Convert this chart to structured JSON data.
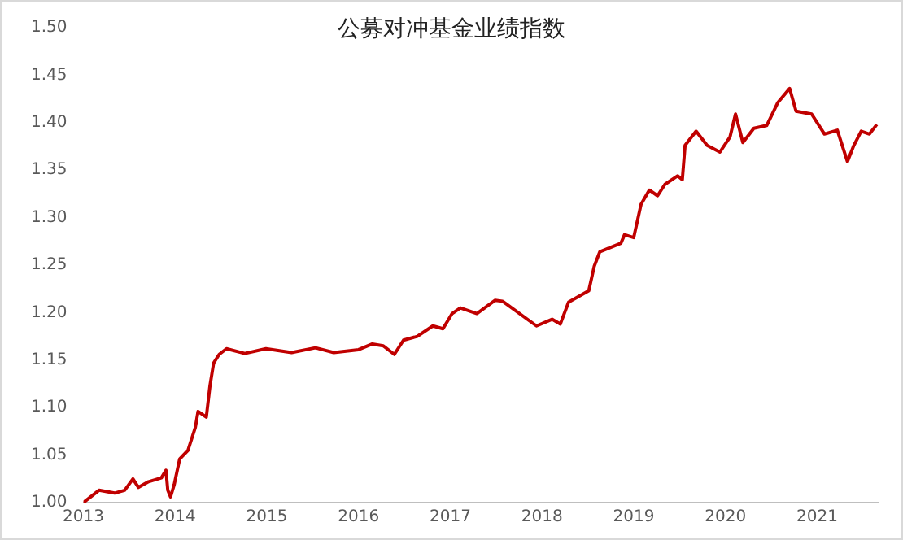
{
  "chart_data": {
    "type": "line",
    "title": "公募对冲基金业绩指数",
    "x": [
      2013.0,
      2013.17,
      2013.34,
      2013.45,
      2013.54,
      2013.6,
      2013.71,
      2013.85,
      2013.9,
      2013.92,
      2013.95,
      2013.99,
      2014.05,
      2014.14,
      2014.22,
      2014.25,
      2014.34,
      2014.38,
      2014.42,
      2014.48,
      2014.56,
      2014.76,
      2014.99,
      2015.27,
      2015.53,
      2015.73,
      2016.0,
      2016.15,
      2016.27,
      2016.39,
      2016.49,
      2016.64,
      2016.81,
      2016.92,
      2017.02,
      2017.11,
      2017.29,
      2017.49,
      2017.57,
      2017.94,
      2018.11,
      2018.2,
      2018.29,
      2018.51,
      2018.57,
      2018.63,
      2018.86,
      2018.9,
      2019.0,
      2019.08,
      2019.17,
      2019.26,
      2019.34,
      2019.48,
      2019.53,
      2019.56,
      2019.68,
      2019.8,
      2019.94,
      2020.05,
      2020.11,
      2020.19,
      2020.31,
      2020.45,
      2020.57,
      2020.7,
      2020.77,
      2020.94,
      2021.08,
      2021.22,
      2021.33,
      2021.4,
      2021.48,
      2021.57,
      2021.65
    ],
    "series": [
      {
        "color": "#c00000",
        "values": [
          1.0,
          1.013,
          1.01,
          1.013,
          1.025,
          1.016,
          1.022,
          1.026,
          1.034,
          1.013,
          1.006,
          1.019,
          1.046,
          1.055,
          1.079,
          1.096,
          1.09,
          1.123,
          1.147,
          1.156,
          1.162,
          1.157,
          1.162,
          1.158,
          1.163,
          1.158,
          1.161,
          1.167,
          1.165,
          1.156,
          1.171,
          1.175,
          1.186,
          1.183,
          1.199,
          1.205,
          1.199,
          1.213,
          1.212,
          1.186,
          1.193,
          1.188,
          1.211,
          1.223,
          1.249,
          1.264,
          1.273,
          1.282,
          1.279,
          1.314,
          1.329,
          1.323,
          1.335,
          1.344,
          1.34,
          1.376,
          1.391,
          1.376,
          1.369,
          1.385,
          1.409,
          1.379,
          1.394,
          1.397,
          1.421,
          1.436,
          1.412,
          1.409,
          1.388,
          1.392,
          1.359,
          1.376,
          1.391,
          1.388,
          1.398
        ]
      }
    ],
    "xlim": [
      2013,
      2021.67
    ],
    "xticks": [
      2013,
      2014,
      2015,
      2016,
      2017,
      2018,
      2019,
      2020,
      2021
    ],
    "ylim": [
      1.0,
      1.5
    ],
    "yticks": [
      {
        "value": 1.0,
        "label": "1.00"
      },
      {
        "value": 1.05,
        "label": "1.05"
      },
      {
        "value": 1.1,
        "label": "1.10"
      },
      {
        "value": 1.15,
        "label": "1.15"
      },
      {
        "value": 1.2,
        "label": "1.20"
      },
      {
        "value": 1.25,
        "label": "1.25"
      },
      {
        "value": 1.3,
        "label": "1.30"
      },
      {
        "value": 1.35,
        "label": "1.35"
      },
      {
        "value": 1.4,
        "label": "1.40"
      },
      {
        "value": 1.45,
        "label": "1.45"
      },
      {
        "value": 1.5,
        "label": "1.50"
      }
    ],
    "grid": false,
    "legend": false,
    "marker": "none",
    "line_style": "solid"
  }
}
